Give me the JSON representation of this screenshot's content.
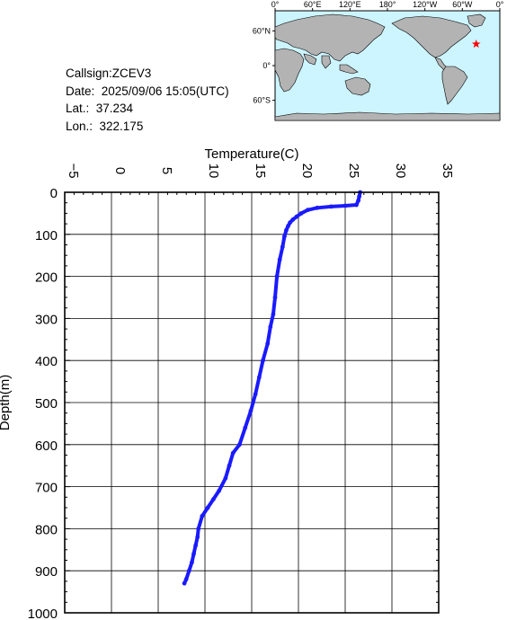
{
  "info": {
    "callsign": "Callsign:ZCEV3",
    "date": "Date:  2025/09/06 15:05(UTC)",
    "lat": "Lat.:  37.234",
    "lon": "Lon.:  322.175"
  },
  "map": {
    "lon_labels": [
      "0°",
      "60°E",
      "120°E",
      "180°",
      "120°W",
      "60°W",
      "0°"
    ],
    "lat_labels": [
      "60°N",
      "0°",
      "60°S"
    ],
    "marker": {
      "lat": 37.234,
      "lon": 322.175,
      "color": "#ff0000"
    },
    "ocean_color": "#ccf5ff",
    "land_color": "#b3b3b3"
  },
  "chart_data": {
    "type": "line",
    "title": "",
    "xlabel": "Temperature(C)",
    "ylabel": "Depth(m)",
    "xlim": [
      -5,
      35
    ],
    "ylim": [
      0,
      1000
    ],
    "y_inverted": true,
    "x_axis_position": "top",
    "grid": true,
    "series_color": "#1a1aff",
    "x_ticks": [
      -5,
      0,
      5,
      10,
      15,
      20,
      25,
      30,
      35
    ],
    "y_ticks": [
      0,
      100,
      200,
      300,
      400,
      500,
      600,
      700,
      800,
      900,
      1000
    ],
    "series": [
      {
        "x": [
          26.6,
          26.5,
          26.4,
          26.2,
          25.0,
          23.5,
          22.0,
          21.0,
          20.3,
          19.8,
          19.4,
          19.1,
          18.9,
          18.7,
          18.5,
          18.3,
          18.0,
          17.7,
          17.5,
          17.3,
          17.0,
          16.7,
          16.2,
          15.8,
          15.4,
          14.9,
          14.3,
          13.7,
          13.0,
          12.6,
          12.2,
          11.5,
          10.9,
          10.3,
          9.7,
          9.3,
          9.2,
          9.0,
          8.8,
          8.6,
          8.3,
          8.0,
          7.8
        ],
        "y": [
          0,
          10,
          20,
          30,
          32,
          34,
          37,
          42,
          50,
          58,
          65,
          72,
          80,
          90,
          105,
          130,
          160,
          200,
          250,
          290,
          320,
          360,
          400,
          440,
          480,
          520,
          560,
          600,
          620,
          650,
          680,
          710,
          730,
          750,
          770,
          800,
          820,
          840,
          860,
          880,
          900,
          920,
          930
        ]
      }
    ]
  }
}
